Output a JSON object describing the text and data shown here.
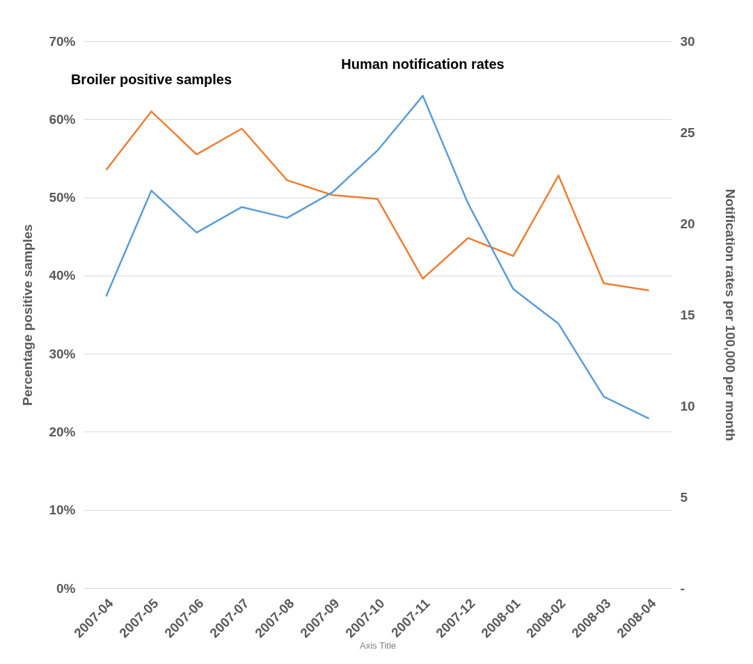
{
  "chart_data": {
    "type": "line",
    "xlabel": "Axis Title",
    "ylabel": "Percentage positive samples",
    "y2label": "Notification rates per 100,000 per month",
    "categories": [
      "2007-04",
      "2007-05",
      "2007-06",
      "2007-07",
      "2007-08",
      "2007-09",
      "2007-10",
      "2007-11",
      "2007-12",
      "2008-01",
      "2008-02",
      "2008-03",
      "2008-04"
    ],
    "series": [
      {
        "name": "Broiler positive samples",
        "color": "#ed7d31",
        "values": [
          53.5,
          61,
          55.5,
          58.8,
          52.2,
          50.3,
          49.8,
          39.6,
          44.8,
          42.5,
          52.8,
          39,
          38.1
        ]
      },
      {
        "name": "Human notification rates",
        "color": "#5b9bd5",
        "axis": "y2",
        "values": [
          16.0,
          21.8,
          19.5,
          20.9,
          20.3,
          21.7,
          24.0,
          27.0,
          21.1,
          16.4,
          14.5,
          10.5,
          9.3
        ]
      }
    ],
    "ylim": [
      0,
      70
    ],
    "yticks": [
      {
        "value": 0,
        "label": "0%"
      },
      {
        "value": 10,
        "label": "10%"
      },
      {
        "value": 20,
        "label": "20%"
      },
      {
        "value": 30,
        "label": "30%"
      },
      {
        "value": 40,
        "label": "40%"
      },
      {
        "value": 50,
        "label": "50%"
      },
      {
        "value": 60,
        "label": "60%"
      },
      {
        "value": 70,
        "label": "70%"
      }
    ],
    "y2lim": [
      0,
      30
    ],
    "y2ticks": [
      {
        "value": 0,
        "label": "-"
      },
      5,
      10,
      15,
      20,
      25,
      30
    ],
    "grid": "y",
    "marker": "none",
    "line_style": "solid"
  }
}
